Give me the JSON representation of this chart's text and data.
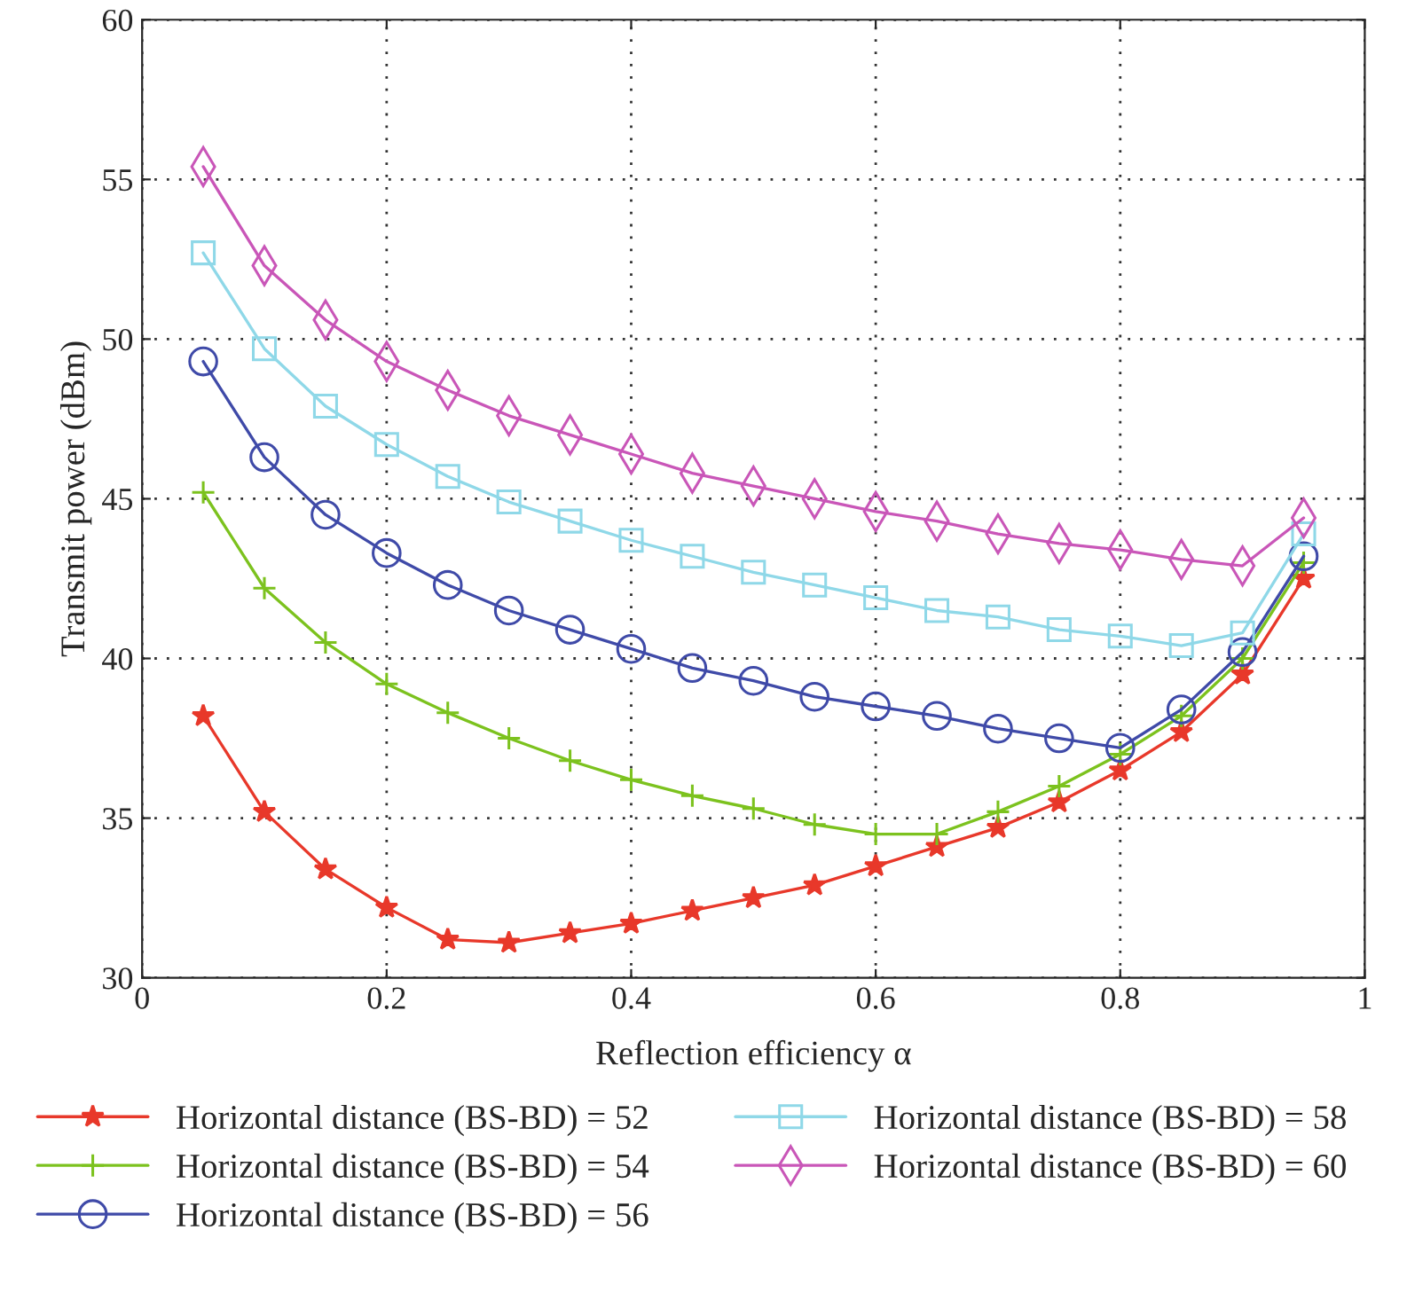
{
  "chart_data": {
    "type": "line",
    "xlabel": "Reflection efficiency α",
    "ylabel": "Transmit power (dBm)",
    "x": [
      0.05,
      0.1,
      0.15,
      0.2,
      0.25,
      0.3,
      0.35,
      0.4,
      0.45,
      0.5,
      0.55,
      0.6,
      0.65,
      0.7,
      0.75,
      0.8,
      0.85,
      0.9,
      0.95
    ],
    "xlim": [
      0,
      1
    ],
    "xticks": [
      0,
      0.2,
      0.4,
      0.6,
      0.8,
      1
    ],
    "ylim": [
      30,
      60
    ],
    "yticks": [
      30,
      35,
      40,
      45,
      50,
      55,
      60
    ],
    "grid": true,
    "legend": "bottom",
    "series": [
      {
        "name": "Horizontal distance (BS-BD) = 52",
        "color": "#e8382a",
        "marker": "star",
        "values": [
          38.2,
          35.2,
          33.4,
          32.2,
          31.2,
          31.1,
          31.4,
          31.7,
          32.1,
          32.5,
          32.9,
          33.5,
          34.1,
          34.7,
          35.5,
          36.5,
          37.7,
          39.5,
          42.5
        ]
      },
      {
        "name": "Horizontal distance (BS-BD) = 54",
        "color": "#7cc21e",
        "marker": "cross",
        "values": [
          45.2,
          42.2,
          40.5,
          39.2,
          38.3,
          37.5,
          36.8,
          36.2,
          35.7,
          35.3,
          34.8,
          34.5,
          34.5,
          35.2,
          36.0,
          37.0,
          38.2,
          40.0,
          43.0
        ]
      },
      {
        "name": "Horizontal distance (BS-BD) = 56",
        "color": "#3f4aa8",
        "marker": "circle",
        "values": [
          49.3,
          46.3,
          44.5,
          43.3,
          42.3,
          41.5,
          40.9,
          40.3,
          39.7,
          39.3,
          38.8,
          38.5,
          38.2,
          37.8,
          37.5,
          37.2,
          38.4,
          40.2,
          43.2
        ]
      },
      {
        "name": "Horizontal distance (BS-BD) = 58",
        "color": "#8fd8e8",
        "marker": "square",
        "values": [
          52.7,
          49.7,
          47.9,
          46.7,
          45.7,
          44.9,
          44.3,
          43.7,
          43.2,
          42.7,
          42.3,
          41.9,
          41.5,
          41.3,
          40.9,
          40.7,
          40.4,
          40.8,
          43.9
        ]
      },
      {
        "name": "Horizontal distance (BS-BD) = 60",
        "color": "#c956b8",
        "marker": "diamond",
        "values": [
          55.4,
          52.3,
          50.6,
          49.3,
          48.4,
          47.6,
          47.0,
          46.4,
          45.8,
          45.4,
          45.0,
          44.6,
          44.3,
          43.9,
          43.6,
          43.4,
          43.1,
          42.9,
          44.4
        ]
      }
    ]
  }
}
